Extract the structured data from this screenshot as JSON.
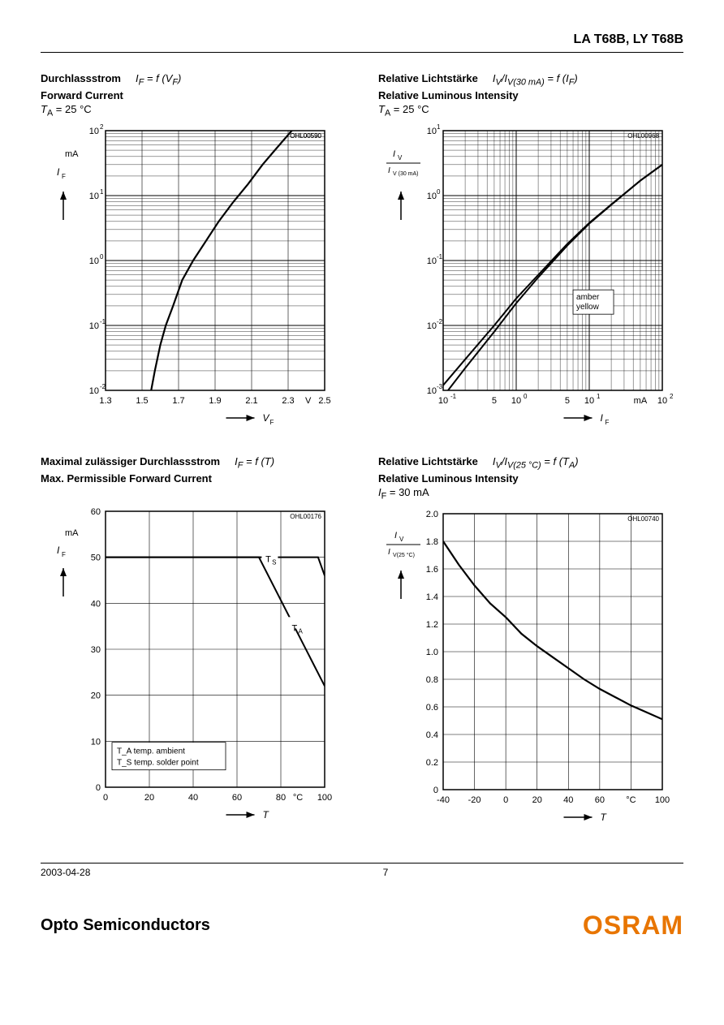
{
  "page": {
    "header_title": "LA T68B, LY T68B",
    "footer_date": "2003-04-28",
    "footer_pagenum": "7",
    "footer_left": "Opto Semiconductors",
    "footer_right": "OSRAM"
  },
  "chart1": {
    "title_de": "Durchlassstrom",
    "title_en": "Forward Current",
    "func": "I_F = f (V_F)",
    "sub": "T_A = 25 °C",
    "code": "OHL00590",
    "y_label": "I_F",
    "y_unit": "mA",
    "x_label": "V_F",
    "x_unit": "V",
    "x_min": 1.3,
    "x_max": 2.5,
    "x_tick_step": 0.2,
    "y_log_min_exp": -2,
    "y_log_max_exp": 2,
    "x_ticks": [
      "1.3",
      "1.5",
      "1.7",
      "1.9",
      "2.1",
      "2.3",
      "2.5"
    ],
    "x_unit_tick": "V",
    "curve": [
      [
        1.55,
        0.01
      ],
      [
        1.57,
        0.02
      ],
      [
        1.6,
        0.05
      ],
      [
        1.63,
        0.1
      ],
      [
        1.67,
        0.2
      ],
      [
        1.72,
        0.5
      ],
      [
        1.78,
        1
      ],
      [
        1.85,
        2
      ],
      [
        1.92,
        4
      ],
      [
        2.0,
        8
      ],
      [
        2.08,
        15
      ],
      [
        2.16,
        30
      ],
      [
        2.24,
        55
      ],
      [
        2.32,
        100
      ]
    ],
    "line_width": 2.2,
    "axis_color": "#000000",
    "grid_color": "#000000",
    "bg": "#ffffff",
    "font_size": 11
  },
  "chart2": {
    "title_de": "Relative Lichtstärke",
    "title_en": "Relative Luminous Intensity",
    "func": "I_V/I_V(30 mA) = f (I_F)",
    "sub": "T_A = 25 °C",
    "code": "OHL00968",
    "y_label_frac_top": "I_V",
    "y_label_frac_bot": "I_V (30 mA)",
    "x_label": "I_F",
    "x_unit": "mA",
    "x_log_min_exp": -1,
    "x_log_max_exp": 2,
    "y_log_min_exp": -3,
    "y_log_max_exp": 1,
    "x_ticks": [
      "10 ⁻¹",
      "5",
      "10 ⁰",
      "5",
      "10 ¹",
      "mA",
      "10 ²"
    ],
    "legend": [
      "amber",
      "yellow"
    ],
    "curve1": [
      [
        0.1,
        0.0008
      ],
      [
        0.2,
        0.0022
      ],
      [
        0.5,
        0.008
      ],
      [
        1,
        0.022
      ],
      [
        2,
        0.055
      ],
      [
        5,
        0.17
      ],
      [
        10,
        0.37
      ],
      [
        20,
        0.72
      ],
      [
        50,
        1.7
      ],
      [
        100,
        3.0
      ]
    ],
    "curve2": [
      [
        0.1,
        0.0012
      ],
      [
        0.2,
        0.003
      ],
      [
        0.5,
        0.01
      ],
      [
        1,
        0.026
      ],
      [
        2,
        0.06
      ],
      [
        5,
        0.18
      ],
      [
        10,
        0.38
      ],
      [
        20,
        0.73
      ],
      [
        50,
        1.7
      ],
      [
        100,
        3.0
      ]
    ],
    "line_width": 2.0,
    "axis_color": "#000000",
    "grid_color": "#000000",
    "bg": "#ffffff",
    "font_size": 11
  },
  "chart3": {
    "title_de": "Maximal zulässiger Durchlassstrom",
    "title_en": "Max. Permissible Forward Current",
    "func": "I_F = f (T)",
    "code": "OHL00176",
    "y_label": "I_F",
    "y_unit": "mA",
    "x_label": "T",
    "x_unit": "°C",
    "x_min": 0,
    "x_max": 100,
    "x_tick_step": 20,
    "y_min": 0,
    "y_max": 60,
    "y_tick_step": 10,
    "x_ticks": [
      "0",
      "20",
      "40",
      "60",
      "80",
      "100"
    ],
    "x_unit_tick": "°C",
    "legend_lines": [
      "T_A temp. ambient",
      "T_S temp. solder point"
    ],
    "label_ts": "T_S",
    "label_ta": "T_A",
    "curve_ta": [
      [
        0,
        50
      ],
      [
        70,
        50
      ],
      [
        100,
        22
      ]
    ],
    "curve_ts": [
      [
        0,
        50
      ],
      [
        97,
        50
      ],
      [
        100,
        46
      ]
    ],
    "line_width": 2.0,
    "axis_color": "#000000",
    "grid_color": "#000000",
    "bg": "#ffffff",
    "font_size": 11
  },
  "chart4": {
    "title_de": "Relative Lichtstärke",
    "title_en": "Relative Luminous Intensity",
    "func": "I_V/I_V(25 °C) = f (T_A)",
    "sub": "I_F = 30 mA",
    "code": "OHL00740",
    "y_label_frac_top": "I_V",
    "y_label_frac_bot": "I_V(25 °C)",
    "x_label": "T",
    "x_unit": "°C",
    "x_min": -40,
    "x_max": 100,
    "x_tick_step": 20,
    "y_min": 0,
    "y_max": 2.0,
    "y_tick_step": 0.2,
    "x_ticks": [
      "-40",
      "-20",
      "0",
      "20",
      "40",
      "60",
      "",
      "100"
    ],
    "x_unit_tick": "°C",
    "y_ticks": [
      "0",
      "0.2",
      "0.4",
      "0.6",
      "0.8",
      "1.0",
      "1.2",
      "1.4",
      "1.6",
      "1.8",
      "2.0"
    ],
    "curve": [
      [
        -40,
        1.8
      ],
      [
        -30,
        1.63
      ],
      [
        -20,
        1.48
      ],
      [
        -10,
        1.35
      ],
      [
        0,
        1.25
      ],
      [
        10,
        1.13
      ],
      [
        20,
        1.04
      ],
      [
        30,
        0.96
      ],
      [
        40,
        0.88
      ],
      [
        50,
        0.8
      ],
      [
        60,
        0.73
      ],
      [
        70,
        0.67
      ],
      [
        80,
        0.61
      ],
      [
        90,
        0.56
      ],
      [
        100,
        0.51
      ]
    ],
    "line_width": 2.2,
    "axis_color": "#000000",
    "grid_color": "#000000",
    "bg": "#ffffff",
    "font_size": 11
  },
  "arrow_glyph": "→"
}
